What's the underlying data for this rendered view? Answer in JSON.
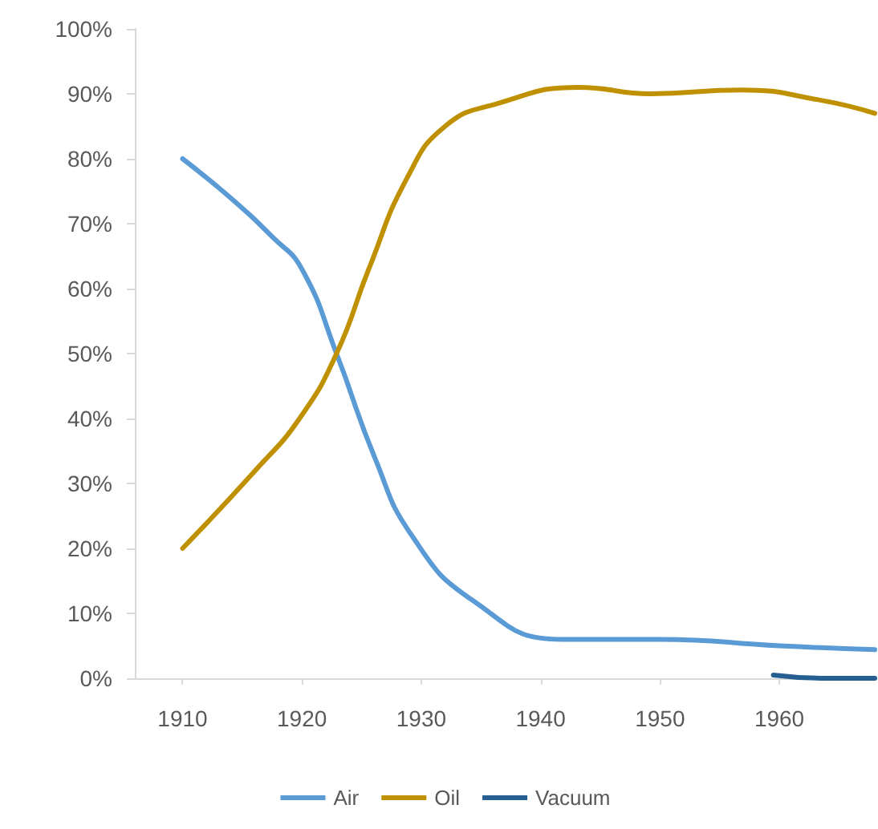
{
  "chart_data": {
    "type": "line",
    "xlim": [
      1906,
      1968
    ],
    "xticks": [
      1910,
      1920,
      1930,
      1940,
      1950,
      1960
    ],
    "ylim": [
      0,
      100
    ],
    "yticks": [
      {
        "value": 0,
        "label": "0%"
      },
      {
        "value": 10,
        "label": "10%"
      },
      {
        "value": 20,
        "label": "20%"
      },
      {
        "value": 30,
        "label": "30%"
      },
      {
        "value": 40,
        "label": "40%"
      },
      {
        "value": 50,
        "label": "50%"
      },
      {
        "value": 60,
        "label": "60%"
      },
      {
        "value": 70,
        "label": "70%"
      },
      {
        "value": 80,
        "label": "80%"
      },
      {
        "value": 90,
        "label": "90%"
      },
      {
        "value": 100,
        "label": "100%"
      }
    ],
    "grid": false,
    "legend": "bottom",
    "marker": "none",
    "line_style": "solid",
    "series": [
      {
        "name": "Air",
        "color": "#5b9bd5",
        "x": [
          1910,
          1914,
          1917.5,
          1920,
          1922.9,
          1926.1,
          1929.2,
          1934.3,
          1941.8,
          1950,
          1960,
          1968
        ],
        "values": [
          80,
          74,
          68,
          63,
          50,
          34,
          22,
          12,
          6,
          6,
          5,
          4.4
        ]
      },
      {
        "name": "Oil",
        "color": "#bf9000",
        "x": [
          1910,
          1916.1,
          1919.8,
          1922.9,
          1925.6,
          1928.8,
          1932,
          1936.4,
          1943.2,
          1949.2,
          1956.8,
          1963.5,
          1968
        ],
        "values": [
          20,
          32,
          40,
          50,
          63,
          77,
          85,
          88.5,
          91,
          90,
          90.6,
          89,
          87
        ]
      },
      {
        "name": "Vacuum",
        "color": "#255e91",
        "x": [
          1959.5,
          1964,
          1968
        ],
        "values": [
          0.5,
          0,
          0
        ]
      }
    ]
  }
}
